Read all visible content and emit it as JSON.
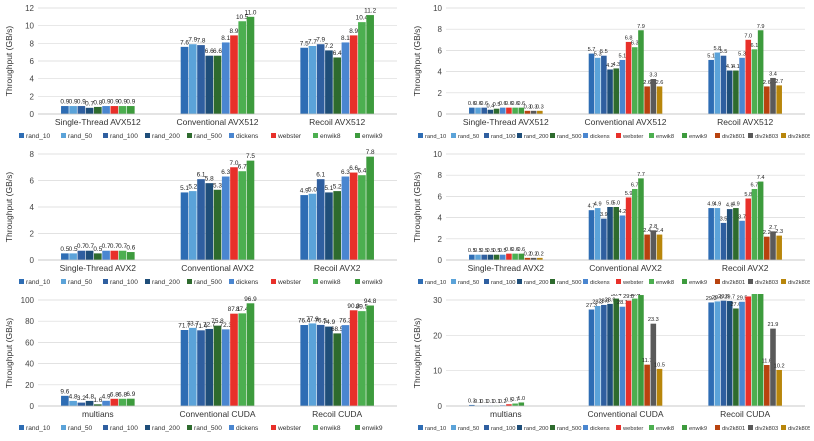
{
  "colors": {
    "rand_10": "#2e6db4",
    "rand_50": "#5ba3d9",
    "rand_100": "#2f5fa0",
    "rand_200": "#1f4e79",
    "rand_500": "#2e6b2e",
    "dickens": "#4a86d0",
    "webster": "#e8302a",
    "enwik8": "#4caf50",
    "enwik9": "#3d9b3d",
    "div2k801": "#b8430f",
    "div2k803": "#5a5a5a",
    "div2k805": "#b8860b"
  },
  "chart_data": [
    {
      "type": "bar",
      "ylabel": "Throughput (GB/s)",
      "ylim": [
        0,
        12
      ],
      "yticks": [
        0,
        2,
        4,
        6,
        8,
        10,
        12
      ],
      "grid": true,
      "legend": "bottom",
      "categories": [
        "Single-Thread AVX512",
        "Conventional AVX512",
        "Recoil AVX512"
      ],
      "series_names": [
        "rand_10",
        "rand_50",
        "rand_100",
        "rand_200",
        "rand_500",
        "dickens",
        "webster",
        "enwik8",
        "enwik9"
      ],
      "values": [
        [
          0.9,
          0.9,
          0.9,
          0.7,
          0.8,
          0.9,
          0.9,
          0.9,
          0.9
        ],
        [
          7.6,
          7.9,
          7.8,
          6.6,
          6.6,
          8.1,
          8.9,
          10.5,
          11.0
        ],
        [
          7.5,
          7.7,
          7.9,
          7.2,
          6.4,
          8.1,
          8.9,
          10.4,
          11.2
        ]
      ],
      "labels": [
        [
          "0.9",
          "0.9",
          "0.9",
          "0.7",
          "0.8",
          "0.9",
          "0.9",
          "0.9",
          "0.9"
        ],
        [
          "7.6",
          "7.9",
          "7.8",
          "6.6",
          "6.6",
          "8.1",
          "8.9",
          "10.5",
          "11.0"
        ],
        [
          "7.5",
          "7.7",
          "7.9",
          "7.2",
          "6.4",
          "8.1",
          "8.9",
          "10.4",
          "11.2"
        ]
      ]
    },
    {
      "type": "bar",
      "ylabel": "Throughput (GB/s)",
      "ylim": [
        0,
        10
      ],
      "yticks": [
        0,
        2,
        4,
        6,
        8,
        10
      ],
      "grid": true,
      "legend": "bottom",
      "categories": [
        "Single-Thread AVX512",
        "Conventional AVX512",
        "Recoil AVX512"
      ],
      "series_names": [
        "rand_10",
        "rand_50",
        "rand_100",
        "rand_200",
        "rand_500",
        "dickens",
        "webster",
        "enwik8",
        "enwik9",
        "div2k801",
        "div2k803",
        "div2k805"
      ],
      "values": [
        [
          0.6,
          0.6,
          0.6,
          0.4,
          0.5,
          0.6,
          0.6,
          0.6,
          0.6,
          0.3,
          0.3,
          0.3
        ],
        [
          5.7,
          5.3,
          5.5,
          4.2,
          4.3,
          5.1,
          6.8,
          6.3,
          7.9,
          2.6,
          3.3,
          2.6
        ],
        [
          5.1,
          5.8,
          5.5,
          4.1,
          4.1,
          5.3,
          7.0,
          6.1,
          7.9,
          2.6,
          3.4,
          2.7
        ]
      ],
      "labels": [
        [
          "0.6",
          "0.6",
          "0.6",
          "0.4",
          "0.5",
          "0.6",
          "0.6",
          "0.6",
          "0.6",
          "0.3",
          "0.3",
          "0.3"
        ],
        [
          "5.7",
          "5.3",
          "5.5",
          "4.2",
          "4.3",
          "5.1",
          "6.8",
          "6.3",
          "7.9",
          "2.6",
          "3.3",
          "2.6"
        ],
        [
          "5.1",
          "5.8",
          "5.5",
          "4.1",
          "4.1",
          "5.3",
          "7.0",
          "6.1",
          "7.9",
          "2.6",
          "3.4",
          "2.7"
        ]
      ]
    },
    {
      "type": "bar",
      "ylabel": "Throughput (GB/s)",
      "ylim": [
        0,
        8
      ],
      "yticks": [
        0,
        2,
        4,
        6,
        8
      ],
      "grid": true,
      "legend": "bottom",
      "categories": [
        "Single-Thread AVX2",
        "Conventional AVX2",
        "Recoil AVX2"
      ],
      "series_names": [
        "rand_10",
        "rand_50",
        "rand_100",
        "rand_200",
        "rand_500",
        "dickens",
        "webster",
        "enwik8",
        "enwik9"
      ],
      "values": [
        [
          0.5,
          0.5,
          0.7,
          0.7,
          0.5,
          0.7,
          0.7,
          0.7,
          0.6
        ],
        [
          5.1,
          5.2,
          6.1,
          5.8,
          5.3,
          6.3,
          7.0,
          6.7,
          7.5
        ],
        [
          4.9,
          5.0,
          6.1,
          5.1,
          5.2,
          6.3,
          6.6,
          6.4,
          7.8
        ]
      ],
      "labels": [
        [
          "0.5",
          "0.5",
          "0.7",
          "0.7",
          "0.5",
          "0.7",
          "0.7",
          "0.7",
          "0.6"
        ],
        [
          "5.1",
          "5.2",
          "6.1",
          "5.8",
          "5.3",
          "6.3",
          "7.0",
          "6.7",
          "7.5"
        ],
        [
          "4.9",
          "5.0",
          "6.1",
          "5.1",
          "5.2",
          "6.3",
          "6.6",
          "6.4",
          "7.8"
        ]
      ]
    },
    {
      "type": "bar",
      "ylabel": "Throughput (GB/s)",
      "ylim": [
        0,
        10
      ],
      "yticks": [
        0,
        2,
        4,
        6,
        8,
        10
      ],
      "grid": true,
      "legend": "bottom",
      "categories": [
        "Single-Thread AVX2",
        "Conventional AVX2",
        "Recoil AVX2"
      ],
      "series_names": [
        "rand_10",
        "rand_50",
        "rand_100",
        "rand_200",
        "rand_500",
        "dickens",
        "webster",
        "enwik8",
        "enwik9",
        "div2k801",
        "div2k803",
        "div2k805"
      ],
      "values": [
        [
          0.5,
          0.5,
          0.5,
          0.5,
          0.5,
          0.5,
          0.6,
          0.6,
          0.6,
          0.2,
          0.2,
          0.2
        ],
        [
          4.7,
          4.9,
          3.9,
          5.0,
          5.0,
          4.2,
          5.9,
          6.7,
          7.7,
          2.4,
          2.8,
          2.4
        ],
        [
          4.9,
          4.9,
          3.5,
          4.8,
          4.9,
          3.7,
          5.8,
          6.7,
          7.4,
          2.2,
          2.7,
          2.3
        ]
      ],
      "labels": [
        [
          "0.5",
          "0.5",
          "0.5",
          "0.5",
          "0.5",
          "0.5",
          "0.6",
          "0.6",
          "0.6",
          "0.2",
          "0.2",
          "0.2"
        ],
        [
          "4.7",
          "4.9",
          "3.9",
          "5.0",
          "5.0",
          "4.2",
          "5.9",
          "6.7",
          "7.7",
          "2.4",
          "2.8",
          "2.4"
        ],
        [
          "4.9",
          "4.9",
          "3.5",
          "4.8",
          "4.9",
          "3.7",
          "5.8",
          "6.7",
          "7.4",
          "2.2",
          "2.7",
          "2.3"
        ]
      ]
    },
    {
      "type": "bar",
      "ylabel": "Throughput (GB/s)",
      "ylim": [
        0,
        100
      ],
      "yticks": [
        0,
        20,
        40,
        60,
        80,
        100
      ],
      "grid": true,
      "legend": "bottom",
      "categories": [
        "multians",
        "Conventional CUDA",
        "Recoil CUDA"
      ],
      "series_names": [
        "rand_10",
        "rand_50",
        "rand_100",
        "rand_200",
        "rand_500",
        "dickens",
        "webster",
        "enwik8",
        "enwik9"
      ],
      "values": [
        [
          9.6,
          4.8,
          3.2,
          4.8,
          1.6,
          4.9,
          6.8,
          6.8,
          6.9
        ],
        [
          71.7,
          73.7,
          71.4,
          72.7,
          75.8,
          72.3,
          87.1,
          87.4,
          96.9
        ],
        [
          76.4,
          77.9,
          76.5,
          74.9,
          68.5,
          76.3,
          90.3,
          89.5,
          94.8
        ]
      ],
      "labels": [
        [
          "9.6",
          "4.8",
          "3.2",
          "4.8",
          "1.6",
          "4.9",
          "6.8",
          "6.8",
          "6.9"
        ],
        [
          "71.7",
          "73.7",
          "71.4",
          "72.7",
          "75.8",
          "72.3",
          "87.1",
          "87.4",
          "96.9"
        ],
        [
          "76.4",
          "77.9",
          "76.5",
          "74.9",
          "68.5",
          "76.3",
          "90.3",
          "89.5",
          "94.8"
        ]
      ]
    },
    {
      "type": "bar",
      "ylabel": "Throughput (GB/s)",
      "ylim": [
        0,
        30
      ],
      "yticks": [
        0,
        10,
        20,
        30
      ],
      "grid": true,
      "legend": "bottom",
      "categories": [
        "multians",
        "Conventional CUDA",
        "Recoil CUDA"
      ],
      "series_names": [
        "rand_10",
        "rand_50",
        "rand_100",
        "rand_200",
        "rand_500",
        "dickens",
        "webster",
        "enwik8",
        "enwik9",
        "div2k801",
        "div2k803",
        "div2k805"
      ],
      "values": [
        [
          0.3,
          0.1,
          0.1,
          0.1,
          0.1,
          0.2,
          0.5,
          0.7,
          1.0,
          null,
          null,
          null
        ],
        [
          27.3,
          28.3,
          28.6,
          28.9,
          30.4,
          28.1,
          29.8,
          30.4,
          31.4,
          11.7,
          23.3,
          10.5
        ],
        [
          29.3,
          29.6,
          29.8,
          29.7,
          27.6,
          29.5,
          31.0,
          31.9,
          31.9,
          11.6,
          21.9,
          10.2
        ]
      ],
      "labels": [
        [
          "0.3",
          "0.1",
          "0.1",
          "0.1",
          "0.1",
          "0.2",
          "0.5",
          "0.7",
          "1.0",
          "",
          "",
          ""
        ],
        [
          "27.3",
          "28.3",
          "28.6",
          "28.9",
          "30.4",
          "28.1",
          "29.8",
          "30.4",
          "31.4",
          "11.7",
          "23.3",
          "10.5"
        ],
        [
          "29.3",
          "29.6",
          "29.8",
          "29.7",
          "27.6",
          "29.5",
          "31.0",
          "31.9",
          "31.9",
          "11.6",
          "21.9",
          "10.2"
        ]
      ]
    }
  ]
}
